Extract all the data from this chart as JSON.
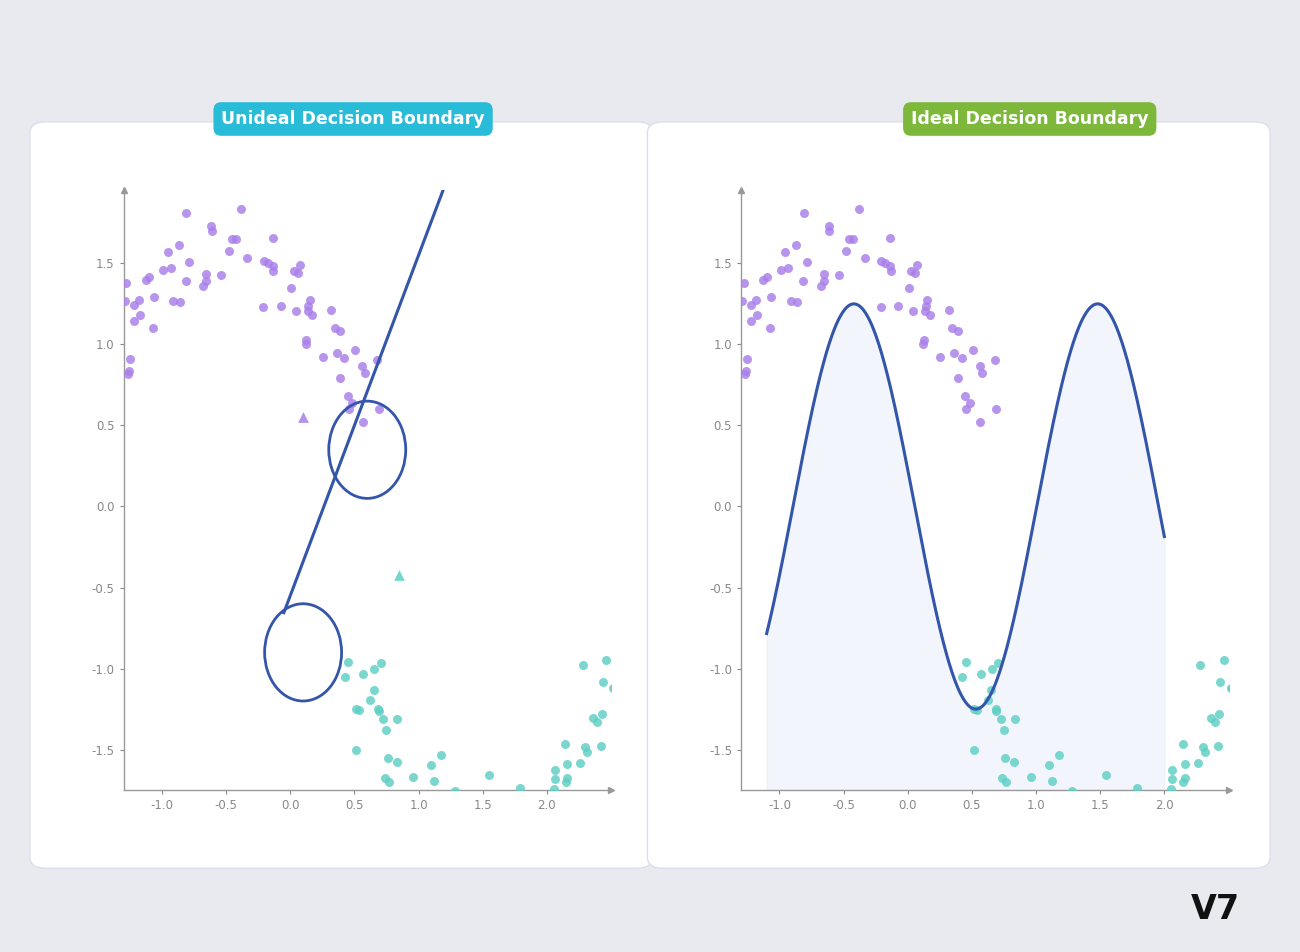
{
  "bg_color": "#e8eaf0",
  "panel_color": "#ffffff",
  "purple_color": "#a97ee8",
  "teal_color": "#5ecfc4",
  "line_color": "#3355aa",
  "fill_color": "#c8daf8",
  "label1_text": "Unideal Decision Boundary",
  "label1_bg": "#29bcd8",
  "label2_text": "Ideal Decision Boundary",
  "label2_bg": "#7db83a",
  "label_text_color": "#ffffff",
  "axis_color": "#999999",
  "tick_color": "#888888",
  "xlim": [
    -1.3,
    2.5
  ],
  "ylim": [
    -1.75,
    1.95
  ],
  "xticks": [
    -1.0,
    -0.5,
    0.0,
    0.5,
    1.0,
    1.5,
    2.0
  ],
  "yticks": [
    -1.5,
    -1.0,
    -0.5,
    0.0,
    0.5,
    1.0,
    1.5
  ]
}
